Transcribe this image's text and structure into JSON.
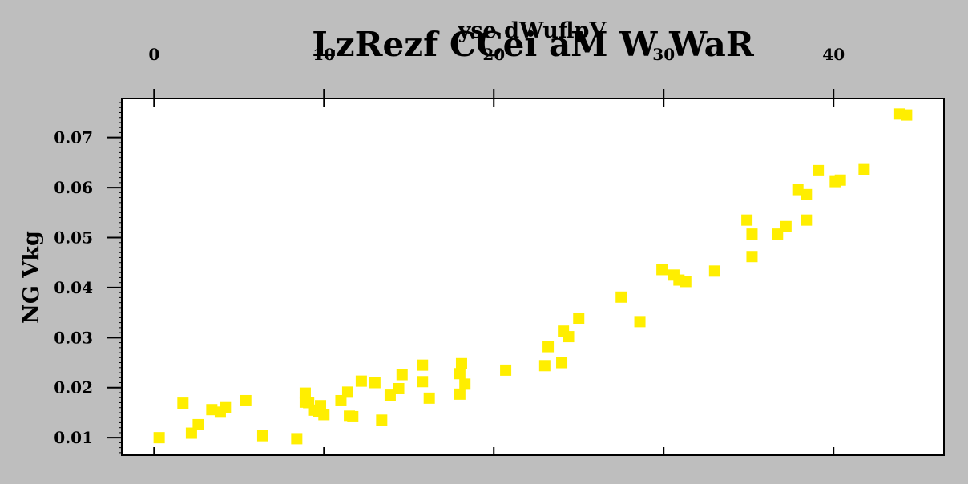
{
  "chart_data": {
    "type": "scatter",
    "title": "LzRezf CCei aM W WaR",
    "xlabel": "yse dWuflpV",
    "ylabel": "NG Vkg",
    "x_axis_position": "top",
    "xlim": [
      -1.9,
      46.5
    ],
    "ylim": [
      0.0065,
      0.0778
    ],
    "xticks": [
      0,
      10,
      20,
      30,
      40
    ],
    "yticks": [
      0.01,
      0.02,
      0.03,
      0.04,
      0.05,
      0.06,
      0.07
    ],
    "ytick_labels": [
      "0.01",
      "0.02",
      "0.03",
      "0.04",
      "0.05",
      "0.06",
      "0.07"
    ],
    "grid": false,
    "marker": "square",
    "marker_color": "#ffee00",
    "points": [
      [
        0.3,
        0.01
      ],
      [
        1.7,
        0.0169
      ],
      [
        2.2,
        0.0109
      ],
      [
        2.6,
        0.0126
      ],
      [
        3.4,
        0.0156
      ],
      [
        3.9,
        0.0151
      ],
      [
        4.2,
        0.016
      ],
      [
        5.4,
        0.0174
      ],
      [
        6.4,
        0.0104
      ],
      [
        8.4,
        0.0098
      ],
      [
        8.9,
        0.0189
      ],
      [
        8.9,
        0.0171
      ],
      [
        9.1,
        0.017
      ],
      [
        9.4,
        0.0155
      ],
      [
        9.7,
        0.0152
      ],
      [
        9.8,
        0.0164
      ],
      [
        10.0,
        0.0146
      ],
      [
        11.0,
        0.0174
      ],
      [
        11.4,
        0.0191
      ],
      [
        11.5,
        0.0143
      ],
      [
        11.7,
        0.0142
      ],
      [
        12.2,
        0.0213
      ],
      [
        13.0,
        0.021
      ],
      [
        13.4,
        0.0135
      ],
      [
        13.9,
        0.0185
      ],
      [
        14.4,
        0.0198
      ],
      [
        14.6,
        0.0226
      ],
      [
        15.8,
        0.0245
      ],
      [
        15.8,
        0.0212
      ],
      [
        16.2,
        0.0179
      ],
      [
        18.0,
        0.0187
      ],
      [
        18.0,
        0.0228
      ],
      [
        18.1,
        0.0248
      ],
      [
        18.3,
        0.0207
      ],
      [
        20.7,
        0.0235
      ],
      [
        23.0,
        0.0244
      ],
      [
        23.2,
        0.0282
      ],
      [
        24.0,
        0.025
      ],
      [
        24.1,
        0.0313
      ],
      [
        24.4,
        0.0302
      ],
      [
        25.0,
        0.0339
      ],
      [
        27.5,
        0.0381
      ],
      [
        28.6,
        0.0332
      ],
      [
        29.9,
        0.0436
      ],
      [
        30.6,
        0.0425
      ],
      [
        30.9,
        0.0415
      ],
      [
        31.3,
        0.0412
      ],
      [
        33.0,
        0.0433
      ],
      [
        34.9,
        0.0535
      ],
      [
        35.2,
        0.0507
      ],
      [
        35.2,
        0.0462
      ],
      [
        36.7,
        0.0507
      ],
      [
        37.2,
        0.0522
      ],
      [
        37.9,
        0.0596
      ],
      [
        38.4,
        0.0586
      ],
      [
        38.4,
        0.0535
      ],
      [
        39.1,
        0.0634
      ],
      [
        40.1,
        0.0612
      ],
      [
        40.4,
        0.0615
      ],
      [
        41.8,
        0.0636
      ],
      [
        43.9,
        0.0747
      ],
      [
        44.3,
        0.0745
      ]
    ]
  }
}
